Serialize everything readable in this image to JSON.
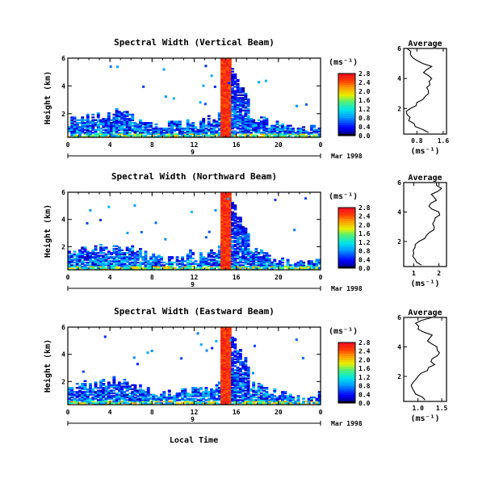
{
  "figure": {
    "colorbar_unit": "(ms⁻¹)",
    "x_axis_label": "Local Time",
    "date_label": "Mar 1998",
    "day_label": "9"
  },
  "chart_data": [
    {
      "type": "heatmap",
      "title": "Spectral Width (Vertical Beam)",
      "ylabel": "Height (km)",
      "xlabel": "Local Time",
      "x_ticks": [
        "0",
        "4",
        "8",
        "12",
        "16",
        "20",
        "0"
      ],
      "y_ticks": [
        "2",
        "4",
        "6"
      ],
      "xlim": [
        0,
        24
      ],
      "ylim": [
        0.3,
        6.0
      ],
      "colorbar_ticks": [
        "0.0",
        "0.4",
        "0.8",
        "1.2",
        "1.6",
        "2.0",
        "2.4",
        "2.8"
      ],
      "colorbar_range": [
        0.0,
        2.8
      ],
      "date": "9 Mar 1998",
      "average_profile": {
        "title": "Average",
        "xlabel": "(ms⁻¹)",
        "x_ticks": [
          "0.8",
          "1.6"
        ],
        "xlim": [
          0.4,
          1.7
        ],
        "y_ticks": [
          "2",
          "4",
          "6"
        ],
        "height_km": [
          0.4,
          0.8,
          1.2,
          1.6,
          2.0,
          2.4,
          2.8,
          3.2,
          3.6,
          4.0,
          4.4,
          4.8,
          5.2,
          5.6,
          6.0
        ],
        "width_ms": [
          1.15,
          0.75,
          0.55,
          0.5,
          0.6,
          0.8,
          1.05,
          1.15,
          1.2,
          1.25,
          1.0,
          1.25,
          0.8,
          0.6,
          0.5
        ]
      }
    },
    {
      "type": "heatmap",
      "title": "Spectral Width (Northward Beam)",
      "ylabel": "Height (km)",
      "xlabel": "Local Time",
      "x_ticks": [
        "0",
        "4",
        "8",
        "12",
        "16",
        "20",
        "0"
      ],
      "y_ticks": [
        "2",
        "4",
        "6"
      ],
      "xlim": [
        0,
        24
      ],
      "ylim": [
        0.3,
        6.0
      ],
      "colorbar_ticks": [
        "0.0",
        "0.4",
        "0.8",
        "1.2",
        "1.6",
        "2.0",
        "2.4",
        "2.8"
      ],
      "colorbar_range": [
        0.0,
        2.8
      ],
      "date": "9 Mar 1998",
      "average_profile": {
        "title": "Average",
        "xlabel": "(ms⁻¹)",
        "x_ticks": [
          "1",
          "2"
        ],
        "xlim": [
          0.6,
          2.3
        ],
        "y_ticks": [
          "2",
          "4",
          "6"
        ],
        "height_km": [
          0.4,
          0.8,
          1.2,
          1.6,
          2.0,
          2.4,
          2.8,
          3.2,
          3.6,
          4.0,
          4.4,
          4.8,
          5.2,
          5.6,
          6.0
        ],
        "width_ms": [
          1.3,
          1.05,
          1.0,
          1.05,
          1.2,
          1.5,
          1.8,
          1.75,
          1.85,
          2.0,
          1.6,
          1.9,
          1.7,
          2.1,
          1.9
        ]
      }
    },
    {
      "type": "heatmap",
      "title": "Spectral Width (Eastward Beam)",
      "ylabel": "Height (km)",
      "xlabel": "Local Time",
      "x_ticks": [
        "0",
        "4",
        "8",
        "12",
        "16",
        "20",
        "0"
      ],
      "y_ticks": [
        "2",
        "4",
        "6"
      ],
      "xlim": [
        0,
        24
      ],
      "ylim": [
        0.3,
        6.0
      ],
      "colorbar_ticks": [
        "0.0",
        "0.4",
        "0.8",
        "1.2",
        "1.6",
        "2.0",
        "2.4",
        "2.8"
      ],
      "colorbar_range": [
        0.0,
        2.8
      ],
      "date": "9 Mar 1998",
      "average_profile": {
        "title": "Average",
        "xlabel": "(ms⁻¹)",
        "x_ticks": [
          "1.0",
          "1.5"
        ],
        "xlim": [
          0.7,
          1.6
        ],
        "y_ticks": [
          "2",
          "4",
          "6"
        ],
        "height_km": [
          0.4,
          0.8,
          1.2,
          1.6,
          2.0,
          2.4,
          2.8,
          3.2,
          3.6,
          4.0,
          4.4,
          4.8,
          5.2,
          5.6,
          6.0
        ],
        "width_ms": [
          1.15,
          0.95,
          0.88,
          0.9,
          1.0,
          1.2,
          1.35,
          1.3,
          1.45,
          1.4,
          1.2,
          1.3,
          1.0,
          0.95,
          1.3
        ]
      }
    }
  ]
}
